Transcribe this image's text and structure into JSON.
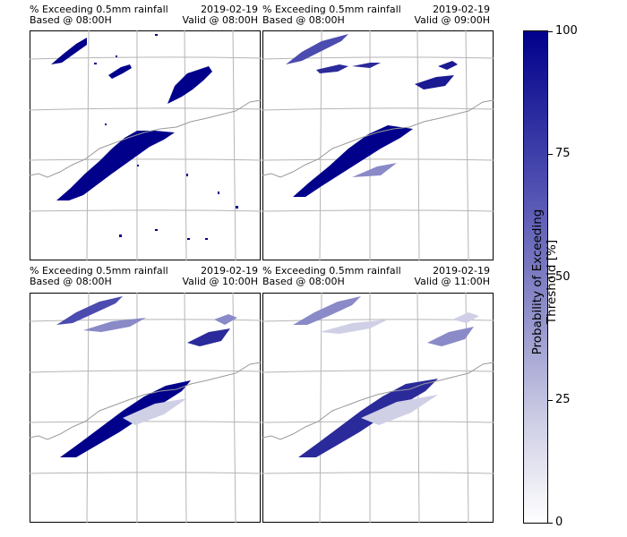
{
  "chart_data": [
    {
      "type": "heatmap",
      "title_left": "% Exceeding 0.5mm rainfall",
      "title_left2": "Based @ 08:00H",
      "title_right": "2019-02-19",
      "title_right2": "Valid @ 08:00H"
    },
    {
      "type": "heatmap",
      "title_left": "% Exceeding 0.5mm rainfall",
      "title_left2": "Based @ 08:00H",
      "title_right": "2019-02-19",
      "title_right2": "Valid @ 09:00H"
    },
    {
      "type": "heatmap",
      "title_left": "% Exceeding 0.5mm rainfall",
      "title_left2": "Based @ 08:00H",
      "title_right": "2019-02-19",
      "title_right2": "Valid @ 10:00H"
    },
    {
      "type": "heatmap",
      "title_left": "% Exceeding 0.5mm rainfall",
      "title_left2": "Based @ 08:00H",
      "title_right": "2019-02-19",
      "title_right2": "Valid @ 11:00H"
    }
  ],
  "colorbar": {
    "label": "Probability of Exceeding Threshold [%]",
    "ticks": [
      "0",
      "25",
      "50",
      "75",
      "100"
    ],
    "range": [
      0,
      100
    ],
    "colormap_low": "#ffffff",
    "colormap_high": "#00008b"
  }
}
